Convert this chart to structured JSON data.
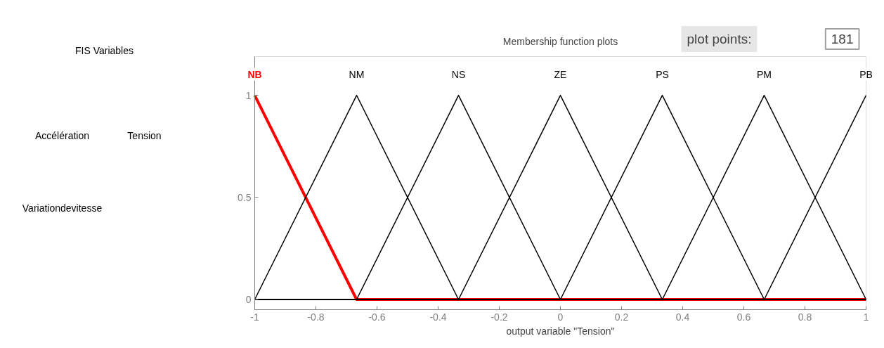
{
  "chart_data": [
    {
      "type": "other",
      "title": "FIS Variables",
      "annotations": [
        "Accélération",
        "Tension",
        "Variationdevitesse"
      ]
    },
    {
      "type": "line",
      "title": "Membership function plots",
      "xlabel": "output variable \"Tension\"",
      "xlim": [
        -1,
        1
      ],
      "ylim": [
        -0.05,
        1.19
      ],
      "xticks": [
        -1,
        -0.8,
        -0.6,
        -0.4,
        -0.2,
        0,
        0.2,
        0.4,
        0.6,
        0.8,
        1
      ],
      "yticks": [
        0,
        0.5,
        1
      ],
      "grid": false,
      "legend": false,
      "marker": "none",
      "line_style": "solid",
      "annotations": [
        "plot points:",
        "181"
      ],
      "series": [
        {
          "name": "NB",
          "color": "#ff0000",
          "x": [
            -1,
            -0.6667,
            1
          ],
          "values": [
            1,
            0,
            0
          ]
        },
        {
          "name": "NM",
          "color": "#000000",
          "x": [
            -1,
            -0.6667,
            -0.3333,
            1
          ],
          "values": [
            0,
            1,
            0,
            0
          ]
        },
        {
          "name": "NS",
          "color": "#000000",
          "x": [
            -1,
            -0.6667,
            -0.3333,
            0,
            1
          ],
          "values": [
            0,
            0,
            1,
            0,
            0
          ]
        },
        {
          "name": "ZE",
          "color": "#000000",
          "x": [
            -1,
            -0.3333,
            0,
            0.3333,
            1
          ],
          "values": [
            0,
            0,
            1,
            0,
            0
          ]
        },
        {
          "name": "PS",
          "color": "#000000",
          "x": [
            -1,
            0,
            0.3333,
            0.6667,
            1
          ],
          "values": [
            0,
            0,
            1,
            0,
            0
          ]
        },
        {
          "name": "PM",
          "color": "#000000",
          "x": [
            -1,
            0.3333,
            0.6667,
            1
          ],
          "values": [
            0,
            0,
            1,
            0
          ]
        },
        {
          "name": "PB",
          "color": "#000000",
          "x": [
            -1,
            0.6667,
            1
          ],
          "values": [
            0,
            0,
            1
          ]
        }
      ]
    }
  ]
}
